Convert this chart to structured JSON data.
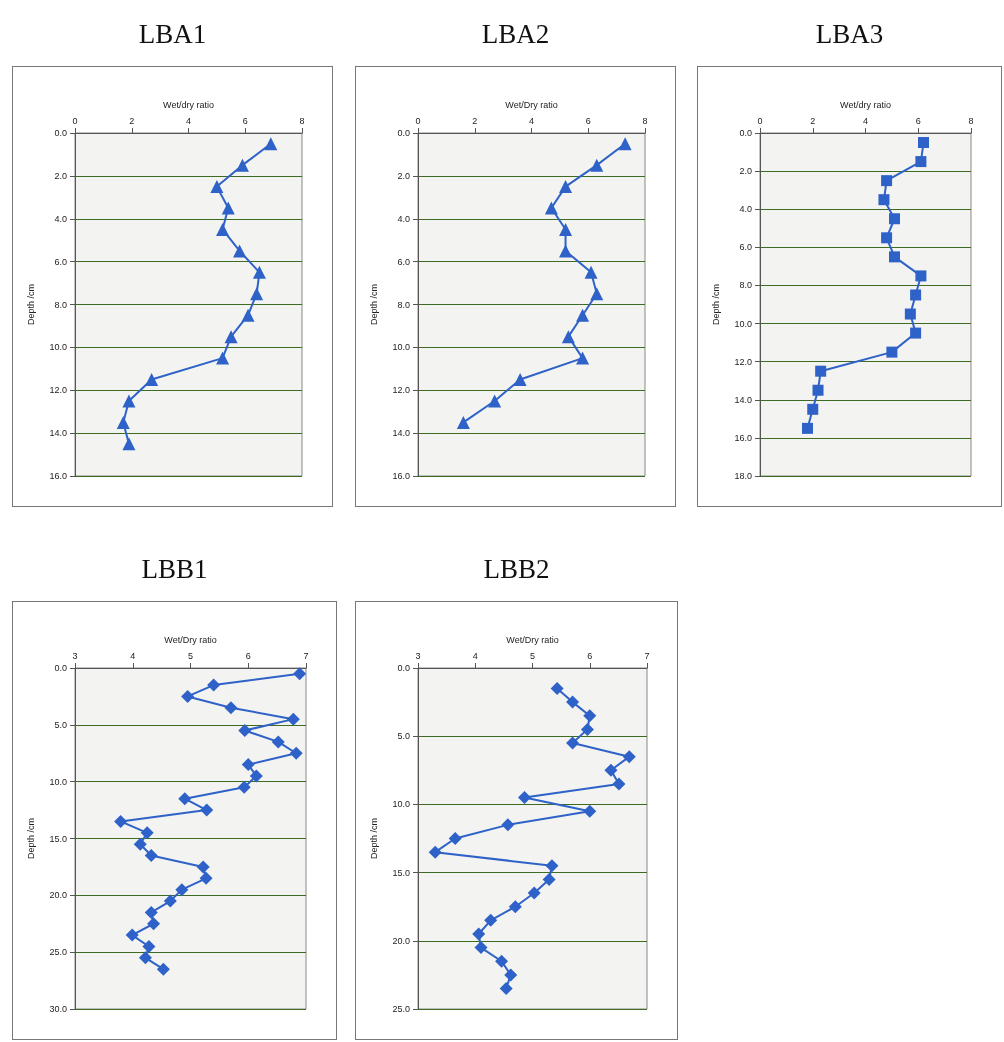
{
  "chart_data": [
    {
      "type": "line",
      "title": "LBA1",
      "xlabel": "Wet/dry ratio",
      "ylabel": "Depth /cm",
      "marker": "triangle",
      "grid": "y",
      "xlim": [
        0,
        8
      ],
      "xticks": [
        0,
        2,
        4,
        6,
        8
      ],
      "ylim": [
        16,
        0
      ],
      "yticks": [
        {
          "value": 0,
          "label": "0.0"
        },
        {
          "value": 2,
          "label": "2.0"
        },
        {
          "value": 4,
          "label": "4.0"
        },
        {
          "value": 6,
          "label": "6.0"
        },
        {
          "value": 8,
          "label": "8.0"
        },
        {
          "value": 10,
          "label": "10.0"
        },
        {
          "value": 12,
          "label": "12.0"
        },
        {
          "value": 14,
          "label": "14.0"
        },
        {
          "value": 16,
          "label": "16.0"
        }
      ],
      "series": [
        {
          "color": "#2e62c8",
          "x": [
            6.9,
            5.9,
            5.0,
            5.4,
            5.2,
            5.8,
            6.5,
            6.4,
            6.1,
            5.5,
            5.2,
            2.7,
            1.9,
            1.7,
            1.9
          ],
          "values": [
            0.5,
            1.5,
            2.5,
            3.5,
            4.5,
            5.5,
            6.5,
            7.5,
            8.5,
            9.5,
            10.5,
            11.5,
            12.5,
            13.5,
            14.5
          ]
        }
      ]
    },
    {
      "type": "line",
      "title": "LBA2",
      "xlabel": "Wet/Dry ratio",
      "ylabel": "Depth /cm",
      "marker": "triangle",
      "grid": "y",
      "xlim": [
        0,
        8
      ],
      "xticks": [
        0,
        2,
        4,
        6,
        8
      ],
      "ylim": [
        16,
        0
      ],
      "yticks": [
        {
          "value": 0,
          "label": "0.0"
        },
        {
          "value": 2,
          "label": "2.0"
        },
        {
          "value": 4,
          "label": "4.0"
        },
        {
          "value": 6,
          "label": "6.0"
        },
        {
          "value": 8,
          "label": "8.0"
        },
        {
          "value": 10,
          "label": "10.0"
        },
        {
          "value": 12,
          "label": "12.0"
        },
        {
          "value": 14,
          "label": "14.0"
        },
        {
          "value": 16,
          "label": "16.0"
        }
      ],
      "series": [
        {
          "color": "#2e62c8",
          "x": [
            7.3,
            6.3,
            5.2,
            4.7,
            5.2,
            5.2,
            6.1,
            6.3,
            5.8,
            5.3,
            5.8,
            3.6,
            2.7,
            1.6
          ],
          "values": [
            0.5,
            1.5,
            2.5,
            3.5,
            4.5,
            5.5,
            6.5,
            7.5,
            8.5,
            9.5,
            10.5,
            11.5,
            12.5,
            13.5
          ]
        }
      ]
    },
    {
      "type": "line",
      "title": "LBA3",
      "xlabel": "Wet/dry ratio",
      "ylabel": "Depth /cm",
      "marker": "square",
      "grid": "y",
      "xlim": [
        0,
        8
      ],
      "xticks": [
        0,
        2,
        4,
        6,
        8
      ],
      "ylim": [
        18,
        0
      ],
      "yticks": [
        {
          "value": 0,
          "label": "0.0"
        },
        {
          "value": 2,
          "label": "2.0"
        },
        {
          "value": 4,
          "label": "4.0"
        },
        {
          "value": 6,
          "label": "6.0"
        },
        {
          "value": 8,
          "label": "8.0"
        },
        {
          "value": 10,
          "label": "10.0"
        },
        {
          "value": 12,
          "label": "12.0"
        },
        {
          "value": 14,
          "label": "14.0"
        },
        {
          "value": 16,
          "label": "16.0"
        },
        {
          "value": 18,
          "label": "18.0"
        }
      ],
      "series": [
        {
          "color": "#2e62c8",
          "x": [
            6.2,
            6.1,
            4.8,
            4.7,
            5.1,
            4.8,
            5.1,
            6.1,
            5.9,
            5.7,
            5.9,
            5.0,
            2.3,
            2.2,
            2.0,
            1.8
          ],
          "values": [
            0.5,
            1.5,
            2.5,
            3.5,
            4.5,
            5.5,
            6.5,
            7.5,
            8.5,
            9.5,
            10.5,
            11.5,
            12.5,
            13.5,
            14.5,
            15.5
          ]
        }
      ]
    },
    {
      "type": "line",
      "title": "LBB1",
      "xlabel": "Wet/Dry ratio",
      "ylabel": "Depth /cm",
      "marker": "diamond",
      "grid": "y",
      "xlim": [
        3,
        7
      ],
      "xticks": [
        3,
        4,
        5,
        6,
        7
      ],
      "ylim": [
        30,
        0
      ],
      "yticks": [
        {
          "value": 0,
          "label": "0.0"
        },
        {
          "value": 5,
          "label": "5.0"
        },
        {
          "value": 10,
          "label": "10.0"
        },
        {
          "value": 15,
          "label": "15.0"
        },
        {
          "value": 20,
          "label": "20.0"
        },
        {
          "value": 25,
          "label": "25.0"
        },
        {
          "value": 30,
          "label": "30.0"
        }
      ],
      "series": [
        {
          "color": "#2e62c8",
          "x": [
            6.89,
            5.4,
            4.95,
            5.7,
            6.78,
            5.94,
            6.52,
            6.83,
            6.0,
            6.14,
            5.93,
            4.9,
            5.28,
            3.79,
            4.25,
            4.13,
            4.32,
            5.22,
            5.27,
            4.85,
            4.65,
            4.32,
            4.36,
            3.99,
            4.28,
            4.22,
            4.53
          ],
          "values": [
            0.5,
            1.5,
            2.5,
            3.5,
            4.5,
            5.5,
            6.5,
            7.5,
            8.5,
            9.5,
            10.5,
            11.5,
            12.5,
            13.5,
            14.5,
            15.5,
            16.5,
            17.5,
            18.5,
            19.5,
            20.5,
            21.5,
            22.5,
            23.5,
            24.5,
            25.5,
            26.5
          ]
        }
      ]
    },
    {
      "type": "line",
      "title": "LBB2",
      "xlabel": "Wet/Dry ratio",
      "ylabel": "Depth /cm",
      "marker": "diamond",
      "grid": "y",
      "xlim": [
        3,
        7
      ],
      "xticks": [
        3,
        4,
        5,
        6,
        7
      ],
      "ylim": [
        25,
        0
      ],
      "yticks": [
        {
          "value": 0,
          "label": "0.0"
        },
        {
          "value": 5,
          "label": "5.0"
        },
        {
          "value": 10,
          "label": "10.0"
        },
        {
          "value": 15,
          "label": "15.0"
        },
        {
          "value": 20,
          "label": "20.0"
        },
        {
          "value": 25,
          "label": "25.0"
        }
      ],
      "series": [
        {
          "color": "#2e62c8",
          "x": [
            5.43,
            5.7,
            6.0,
            5.96,
            5.7,
            6.69,
            6.37,
            6.51,
            4.86,
            6.0,
            4.57,
            3.65,
            3.3,
            5.34,
            5.29,
            5.03,
            4.7,
            4.27,
            4.06,
            4.1,
            4.46,
            4.62,
            4.54
          ],
          "values": [
            1.5,
            2.5,
            3.5,
            4.5,
            5.5,
            6.5,
            7.5,
            8.5,
            9.5,
            10.5,
            11.5,
            12.5,
            13.5,
            14.5,
            15.5,
            16.5,
            17.5,
            18.5,
            19.5,
            20.5,
            21.5,
            22.5,
            23.5
          ]
        }
      ]
    }
  ]
}
